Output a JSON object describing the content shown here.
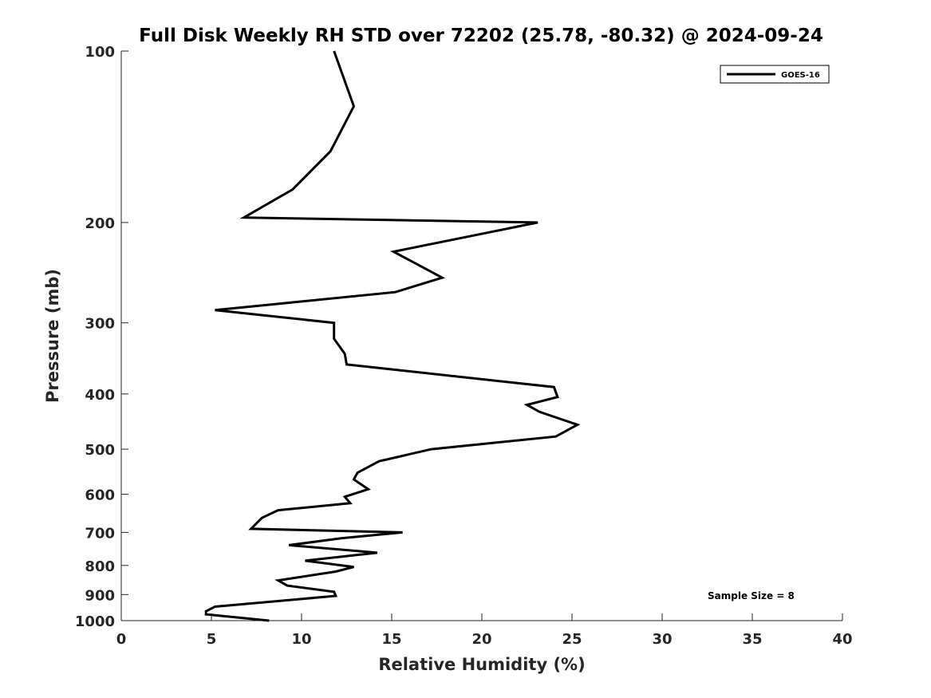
{
  "chart_data": {
    "type": "line",
    "title": "Full Disk Weekly RH STD over 72202 (25.78, -80.32) @ 2024-09-24",
    "xlabel": "Relative Humidity (%)",
    "ylabel": "Pressure (mb)",
    "xlim": [
      0,
      40
    ],
    "ylim": [
      100,
      1000
    ],
    "yscale": "log",
    "y_reversed": true,
    "xticks": [
      0,
      5,
      10,
      15,
      20,
      25,
      30,
      35,
      40
    ],
    "xtick_labels": [
      "0",
      "5",
      "10",
      "15",
      "20",
      "25",
      "30",
      "35",
      "40"
    ],
    "yticks": [
      100,
      200,
      300,
      400,
      500,
      600,
      700,
      800,
      900,
      1000
    ],
    "ytick_labels": [
      "100",
      "200",
      "300",
      "400",
      "500",
      "600",
      "700",
      "800",
      "900",
      "1000"
    ],
    "grid": false,
    "legend_position": "top-right",
    "annotation": "Sample Size = 8",
    "line_color": "#000000",
    "series": [
      {
        "name": "GOES-16",
        "points": [
          [
            11.8,
            100
          ],
          [
            12.9,
            125
          ],
          [
            11.6,
            150
          ],
          [
            9.5,
            175
          ],
          [
            6.8,
            196
          ],
          [
            23.1,
            200
          ],
          [
            15.1,
            225
          ],
          [
            17.8,
            250
          ],
          [
            15.2,
            265
          ],
          [
            5.2,
            285
          ],
          [
            11.8,
            300
          ],
          [
            11.8,
            320
          ],
          [
            12.4,
            340
          ],
          [
            12.5,
            355
          ],
          [
            24.0,
            389
          ],
          [
            24.2,
            405
          ],
          [
            22.5,
            418
          ],
          [
            23.2,
            430
          ],
          [
            25.3,
            453
          ],
          [
            24.1,
            475
          ],
          [
            17.2,
            500
          ],
          [
            14.3,
            525
          ],
          [
            13.1,
            550
          ],
          [
            12.9,
            565
          ],
          [
            13.7,
            588
          ],
          [
            12.4,
            606
          ],
          [
            12.7,
            622
          ],
          [
            8.7,
            640
          ],
          [
            7.8,
            660
          ],
          [
            7.2,
            690
          ],
          [
            15.6,
            700
          ],
          [
            12.2,
            717
          ],
          [
            9.3,
            737
          ],
          [
            14.2,
            760
          ],
          [
            10.2,
            785
          ],
          [
            12.9,
            805
          ],
          [
            11.9,
            820
          ],
          [
            8.7,
            850
          ],
          [
            9.2,
            868
          ],
          [
            11.8,
            890
          ],
          [
            11.9,
            905
          ],
          [
            5.2,
            945
          ],
          [
            4.7,
            963
          ],
          [
            4.7,
            975
          ],
          [
            8.2,
            1000
          ]
        ]
      }
    ]
  }
}
